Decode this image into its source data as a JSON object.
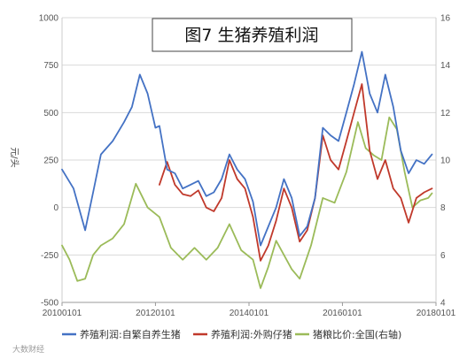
{
  "watermark": "大数财经",
  "chart_data": {
    "type": "line",
    "title": "图7 生猪养殖利润",
    "ylabel": "元/头",
    "y2label": "",
    "ylim": [
      -500,
      1000
    ],
    "y2lim": [
      4,
      16
    ],
    "y_ticks": [
      -500,
      -250,
      0,
      250,
      500,
      750,
      1000
    ],
    "y2_ticks": [
      4,
      6,
      8,
      10,
      12,
      14,
      16
    ],
    "xlim": [
      "2010-01-01",
      "2018-01-01"
    ],
    "x_ticks": [
      "20100101",
      "20120101",
      "20140101",
      "20160101",
      "20180101"
    ],
    "grid": true,
    "legend_position": "bottom",
    "series": [
      {
        "name": "养殖利润:自繁自养生猪",
        "axis": "left",
        "color": "#4472c4",
        "points": [
          [
            "2010-01-01",
            200
          ],
          [
            "2010-04-01",
            100
          ],
          [
            "2010-07-01",
            -120
          ],
          [
            "2010-09-01",
            80
          ],
          [
            "2010-11-01",
            280
          ],
          [
            "2011-02-01",
            350
          ],
          [
            "2011-05-01",
            450
          ],
          [
            "2011-07-01",
            530
          ],
          [
            "2011-09-01",
            700
          ],
          [
            "2011-11-01",
            600
          ],
          [
            "2012-01-01",
            420
          ],
          [
            "2012-02-01",
            430
          ],
          [
            "2012-04-01",
            200
          ],
          [
            "2012-06-01",
            180
          ],
          [
            "2012-08-01",
            100
          ],
          [
            "2012-10-01",
            120
          ],
          [
            "2012-12-01",
            140
          ],
          [
            "2013-02-01",
            60
          ],
          [
            "2013-04-01",
            80
          ],
          [
            "2013-06-01",
            150
          ],
          [
            "2013-08-01",
            280
          ],
          [
            "2013-10-01",
            200
          ],
          [
            "2013-12-01",
            150
          ],
          [
            "2014-02-01",
            30
          ],
          [
            "2014-04-01",
            -200
          ],
          [
            "2014-06-01",
            -100
          ],
          [
            "2014-08-01",
            0
          ],
          [
            "2014-10-01",
            150
          ],
          [
            "2014-12-01",
            50
          ],
          [
            "2015-02-01",
            -150
          ],
          [
            "2015-04-01",
            -100
          ],
          [
            "2015-06-01",
            50
          ],
          [
            "2015-08-01",
            420
          ],
          [
            "2015-10-01",
            380
          ],
          [
            "2015-12-01",
            350
          ],
          [
            "2016-02-01",
            500
          ],
          [
            "2016-04-01",
            650
          ],
          [
            "2016-06-01",
            820
          ],
          [
            "2016-08-01",
            600
          ],
          [
            "2016-10-01",
            500
          ],
          [
            "2016-12-01",
            700
          ],
          [
            "2017-02-01",
            530
          ],
          [
            "2017-04-01",
            300
          ],
          [
            "2017-06-01",
            180
          ],
          [
            "2017-08-01",
            250
          ],
          [
            "2017-10-01",
            230
          ],
          [
            "2017-12-01",
            280
          ]
        ]
      },
      {
        "name": "养殖利润:外购仔猪",
        "axis": "left",
        "color": "#c0392b",
        "points": [
          [
            "2012-02-01",
            120
          ],
          [
            "2012-04-01",
            240
          ],
          [
            "2012-06-01",
            120
          ],
          [
            "2012-08-01",
            70
          ],
          [
            "2012-10-01",
            60
          ],
          [
            "2012-12-01",
            90
          ],
          [
            "2013-02-01",
            0
          ],
          [
            "2013-04-01",
            -20
          ],
          [
            "2013-06-01",
            50
          ],
          [
            "2013-08-01",
            250
          ],
          [
            "2013-10-01",
            150
          ],
          [
            "2013-12-01",
            100
          ],
          [
            "2014-02-01",
            -50
          ],
          [
            "2014-04-01",
            -280
          ],
          [
            "2014-06-01",
            -200
          ],
          [
            "2014-08-01",
            -70
          ],
          [
            "2014-10-01",
            100
          ],
          [
            "2014-12-01",
            0
          ],
          [
            "2015-02-01",
            -180
          ],
          [
            "2015-04-01",
            -120
          ],
          [
            "2015-06-01",
            50
          ],
          [
            "2015-08-01",
            380
          ],
          [
            "2015-10-01",
            250
          ],
          [
            "2015-12-01",
            200
          ],
          [
            "2016-02-01",
            350
          ],
          [
            "2016-04-01",
            500
          ],
          [
            "2016-06-01",
            650
          ],
          [
            "2016-08-01",
            300
          ],
          [
            "2016-10-01",
            150
          ],
          [
            "2016-12-01",
            250
          ],
          [
            "2017-02-01",
            100
          ],
          [
            "2017-04-01",
            50
          ],
          [
            "2017-06-01",
            -80
          ],
          [
            "2017-08-01",
            50
          ],
          [
            "2017-10-01",
            80
          ],
          [
            "2017-12-01",
            100
          ]
        ]
      },
      {
        "name": "猪粮比价:全国(右轴)",
        "axis": "right",
        "color": "#9bbb59",
        "points": [
          [
            "2010-01-01",
            6.4
          ],
          [
            "2010-03-01",
            5.8
          ],
          [
            "2010-05-01",
            4.9
          ],
          [
            "2010-07-01",
            5.0
          ],
          [
            "2010-09-01",
            6.0
          ],
          [
            "2010-11-01",
            6.4
          ],
          [
            "2011-02-01",
            6.7
          ],
          [
            "2011-05-01",
            7.3
          ],
          [
            "2011-08-01",
            9.0
          ],
          [
            "2011-11-01",
            8.0
          ],
          [
            "2012-02-01",
            7.6
          ],
          [
            "2012-05-01",
            6.3
          ],
          [
            "2012-08-01",
            5.8
          ],
          [
            "2012-11-01",
            6.3
          ],
          [
            "2013-02-01",
            5.8
          ],
          [
            "2013-05-01",
            6.3
          ],
          [
            "2013-08-01",
            7.3
          ],
          [
            "2013-11-01",
            6.2
          ],
          [
            "2014-02-01",
            5.8
          ],
          [
            "2014-04-01",
            4.6
          ],
          [
            "2014-06-01",
            5.5
          ],
          [
            "2014-08-01",
            6.6
          ],
          [
            "2014-10-01",
            6.0
          ],
          [
            "2014-12-01",
            5.4
          ],
          [
            "2015-02-01",
            5.0
          ],
          [
            "2015-05-01",
            6.4
          ],
          [
            "2015-08-01",
            8.4
          ],
          [
            "2015-11-01",
            8.2
          ],
          [
            "2016-02-01",
            9.5
          ],
          [
            "2016-05-01",
            11.6
          ],
          [
            "2016-07-01",
            10.5
          ],
          [
            "2016-09-01",
            10.2
          ],
          [
            "2016-11-01",
            10.0
          ],
          [
            "2017-01-01",
            11.8
          ],
          [
            "2017-03-01",
            11.3
          ],
          [
            "2017-05-01",
            9.5
          ],
          [
            "2017-07-01",
            8.0
          ],
          [
            "2017-09-01",
            8.3
          ],
          [
            "2017-11-01",
            8.4
          ],
          [
            "2017-12-01",
            8.6
          ]
        ]
      }
    ]
  }
}
